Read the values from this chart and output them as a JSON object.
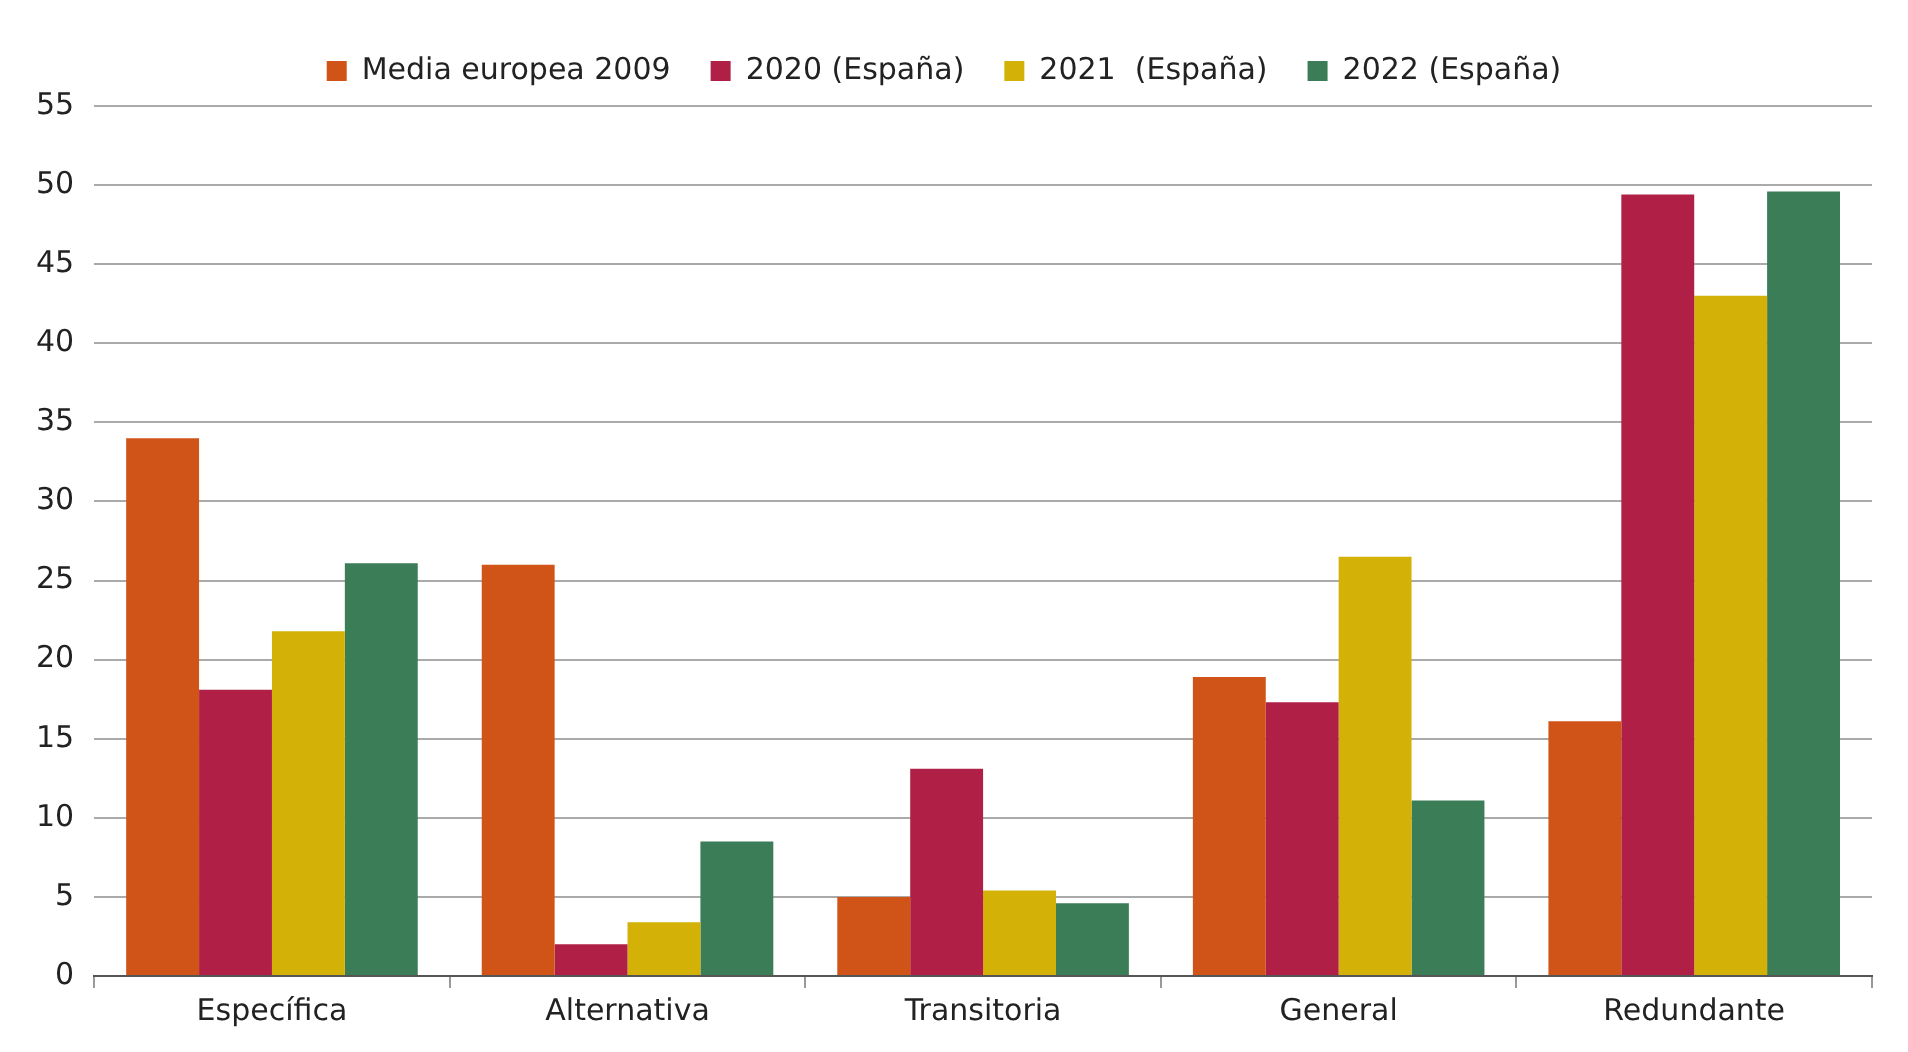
{
  "chart_data": {
    "type": "bar",
    "categories": [
      "Específica",
      "Alternativa",
      "Transitoria",
      "General",
      "Redundante"
    ],
    "series": [
      {
        "name": "Media europea 2009",
        "color": "#d05317",
        "values": [
          34,
          26,
          5,
          18.9,
          16.1
        ]
      },
      {
        "name": "2020 (España)",
        "color": "#b02046",
        "values": [
          18.1,
          2,
          13.1,
          17.3,
          49.4
        ]
      },
      {
        "name": "2021  (España)",
        "color": "#d4b106",
        "values": [
          21.8,
          3.4,
          5.4,
          26.5,
          43
        ]
      },
      {
        "name": "2022 (España)",
        "color": "#3a7d57",
        "values": [
          26.1,
          8.5,
          4.6,
          11.1,
          49.6
        ]
      }
    ],
    "ylim": [
      0,
      55
    ],
    "yticks": [
      0,
      5,
      10,
      15,
      20,
      25,
      30,
      35,
      40,
      45,
      50,
      55
    ],
    "grid": "y",
    "legend": "top"
  }
}
